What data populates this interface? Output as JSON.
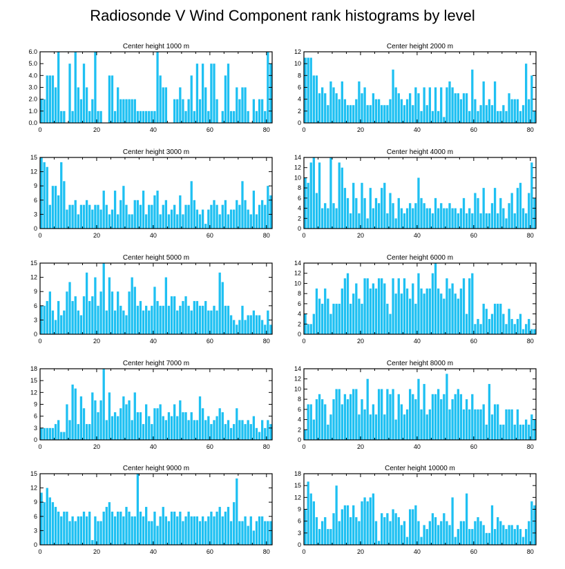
{
  "title": "Radiosonde V Wind Component rank histograms by level",
  "bar_color": "#1ec0f2",
  "chart_data": [
    {
      "type": "bar",
      "title": "Center height 1000 m",
      "xlim": [
        0,
        82
      ],
      "xticks": [
        0,
        20,
        40,
        60,
        80
      ],
      "ylim": [
        0,
        6
      ],
      "yticks": [
        "0.0",
        "1.0",
        "2.0",
        "3.0",
        "4.0",
        "5.0",
        "6.0"
      ],
      "values": [
        2,
        2,
        4,
        4,
        4,
        3,
        6,
        1,
        1,
        0,
        5,
        1,
        6,
        3,
        2,
        5,
        3,
        1,
        2,
        6,
        1,
        1,
        0,
        0,
        4,
        4,
        1,
        3,
        2,
        2,
        2,
        2,
        2,
        2,
        1,
        1,
        1,
        1,
        1,
        1,
        1,
        6,
        4,
        3,
        3,
        0,
        0,
        2,
        2,
        3,
        2,
        1,
        2,
        4,
        1,
        5,
        2,
        5,
        3,
        1,
        5,
        5,
        2,
        0,
        1,
        4,
        5,
        1,
        1,
        3,
        2,
        3,
        3,
        1,
        0,
        2,
        1,
        2,
        2,
        1,
        6,
        5
      ]
    },
    {
      "type": "bar",
      "title": "Center height 2000 m",
      "xlim": [
        0,
        82
      ],
      "xticks": [
        0,
        20,
        40,
        60,
        80
      ],
      "ylim": [
        0,
        12
      ],
      "yticks": [
        "0",
        "2",
        "4",
        "6",
        "8",
        "10",
        "12"
      ],
      "values": [
        11,
        11,
        11,
        8,
        8,
        5,
        6,
        5,
        3,
        7,
        6,
        5,
        4,
        7,
        4,
        3,
        3,
        3,
        4,
        7,
        5,
        6,
        3,
        3,
        5,
        4,
        4,
        3,
        3,
        3,
        4,
        9,
        6,
        5,
        4,
        3,
        4,
        5,
        3,
        6,
        5,
        2,
        6,
        3,
        6,
        2,
        6,
        2,
        6,
        1,
        6,
        7,
        6,
        5,
        5,
        4,
        5,
        5,
        2,
        9,
        4,
        2,
        3,
        7,
        3,
        4,
        3,
        7,
        2,
        2,
        3,
        2,
        5,
        4,
        4,
        4,
        2,
        3,
        10,
        4,
        8,
        2
      ]
    },
    {
      "type": "bar",
      "title": "Center height 3000 m",
      "xlim": [
        0,
        82
      ],
      "xticks": [
        0,
        20,
        40,
        60,
        80
      ],
      "ylim": [
        0,
        15
      ],
      "yticks": [
        "0",
        "3",
        "6",
        "9",
        "12",
        "15"
      ],
      "values": [
        15,
        14,
        13,
        5,
        9,
        9,
        7,
        14,
        10,
        4,
        5,
        5,
        6,
        3,
        5,
        5,
        6,
        5,
        4,
        5,
        5,
        4,
        8,
        5,
        3,
        4,
        8,
        3,
        6,
        9,
        5,
        3,
        3,
        6,
        6,
        5,
        8,
        3,
        5,
        5,
        7,
        8,
        3,
        5,
        6,
        3,
        4,
        5,
        3,
        7,
        3,
        5,
        5,
        10,
        6,
        4,
        3,
        4,
        1,
        4,
        5,
        6,
        5,
        3,
        5,
        6,
        3,
        4,
        4,
        6,
        5,
        10,
        6,
        4,
        3,
        8,
        3,
        5,
        6,
        5,
        9,
        7
      ]
    },
    {
      "type": "bar",
      "title": "Center height 4000 m",
      "xlim": [
        0,
        82
      ],
      "xticks": [
        0,
        20,
        40,
        60,
        80
      ],
      "ylim": [
        0,
        14
      ],
      "yticks": [
        "0",
        "2",
        "4",
        "6",
        "8",
        "10",
        "12",
        "14"
      ],
      "values": [
        10,
        9,
        13,
        14,
        7,
        13,
        4,
        5,
        4,
        14,
        5,
        4,
        13,
        12,
        8,
        6,
        3,
        9,
        6,
        3,
        9,
        6,
        2,
        8,
        4,
        6,
        5,
        8,
        9,
        3,
        7,
        5,
        2,
        6,
        4,
        3,
        4,
        5,
        4,
        5,
        10,
        6,
        5,
        4,
        4,
        3,
        6,
        4,
        5,
        4,
        4,
        5,
        4,
        4,
        3,
        4,
        6,
        3,
        4,
        3,
        7,
        6,
        3,
        8,
        3,
        3,
        5,
        8,
        3,
        6,
        4,
        2,
        5,
        7,
        3,
        8,
        9,
        4,
        3,
        7,
        13,
        6
      ]
    },
    {
      "type": "bar",
      "title": "Center height 5000 m",
      "xlim": [
        0,
        82
      ],
      "xticks": [
        0,
        20,
        40,
        60,
        80
      ],
      "ylim": [
        0,
        15
      ],
      "yticks": [
        "0",
        "3",
        "6",
        "9",
        "12",
        "15"
      ],
      "values": [
        6,
        6,
        7,
        9,
        5,
        3,
        7,
        4,
        5,
        9,
        11,
        7,
        8,
        5,
        4,
        8,
        13,
        7,
        8,
        12,
        6,
        9,
        15,
        5,
        12,
        9,
        5,
        9,
        6,
        5,
        4,
        9,
        12,
        10,
        6,
        7,
        5,
        6,
        5,
        6,
        10,
        7,
        6,
        6,
        12,
        6,
        8,
        8,
        5,
        6,
        7,
        8,
        6,
        5,
        7,
        7,
        6,
        6,
        7,
        5,
        5,
        6,
        5,
        13,
        11,
        6,
        6,
        4,
        3,
        2,
        3,
        6,
        3,
        4,
        4,
        5,
        4,
        4,
        3,
        2,
        5,
        2
      ]
    },
    {
      "type": "bar",
      "title": "Center height 6000 m",
      "xlim": [
        0,
        82
      ],
      "xticks": [
        0,
        20,
        40,
        60,
        80
      ],
      "ylim": [
        0,
        14
      ],
      "yticks": [
        "0",
        "2",
        "4",
        "6",
        "8",
        "10",
        "12",
        "14"
      ],
      "values": [
        4,
        2,
        2,
        4,
        9,
        7,
        6,
        9,
        7,
        4,
        6,
        6,
        6,
        9,
        11,
        12,
        6,
        8,
        10,
        7,
        6,
        11,
        11,
        9,
        10,
        9,
        11,
        11,
        10,
        6,
        4,
        11,
        8,
        11,
        8,
        11,
        9,
        7,
        10,
        6,
        12,
        9,
        8,
        9,
        9,
        12,
        14,
        9,
        8,
        7,
        11,
        9,
        10,
        8,
        7,
        9,
        11,
        4,
        11,
        12,
        2,
        3,
        2,
        6,
        5,
        3,
        4,
        6,
        6,
        6,
        4,
        2,
        5,
        3,
        2,
        3,
        4,
        1,
        2,
        3,
        1,
        1
      ]
    },
    {
      "type": "bar",
      "title": "Center height 7000 m",
      "xlim": [
        0,
        82
      ],
      "xticks": [
        0,
        20,
        40,
        60,
        80
      ],
      "ylim": [
        0,
        18
      ],
      "yticks": [
        "0",
        "3",
        "6",
        "9",
        "12",
        "15",
        "18"
      ],
      "values": [
        3,
        3,
        3,
        3,
        3,
        4,
        5,
        2,
        2,
        9,
        5,
        14,
        13,
        4,
        11,
        8,
        4,
        4,
        12,
        10,
        7,
        10,
        18,
        5,
        12,
        6,
        7,
        6,
        8,
        11,
        9,
        10,
        5,
        12,
        7,
        7,
        4,
        9,
        6,
        4,
        8,
        8,
        9,
        6,
        5,
        7,
        6,
        9,
        6,
        10,
        7,
        7,
        5,
        7,
        5,
        5,
        11,
        8,
        5,
        6,
        4,
        5,
        6,
        8,
        7,
        4,
        5,
        3,
        4,
        8,
        5,
        5,
        4,
        5,
        4,
        6,
        3,
        2,
        5,
        3,
        5,
        4
      ]
    },
    {
      "type": "bar",
      "title": "Center height 8000 m",
      "xlim": [
        0,
        82
      ],
      "xticks": [
        0,
        20,
        40,
        60,
        80
      ],
      "ylim": [
        0,
        14
      ],
      "yticks": [
        "0",
        "2",
        "4",
        "6",
        "8",
        "10",
        "12",
        "14"
      ],
      "values": [
        2,
        7,
        7,
        4,
        8,
        9,
        8,
        7,
        3,
        5,
        8,
        10,
        10,
        7,
        9,
        8,
        9,
        10,
        10,
        5,
        8,
        6,
        12,
        5,
        7,
        5,
        10,
        10,
        5,
        10,
        9,
        10,
        4,
        9,
        7,
        5,
        6,
        10,
        9,
        8,
        12,
        6,
        11,
        5,
        6,
        9,
        9,
        10,
        8,
        9,
        13,
        6,
        8,
        9,
        10,
        9,
        6,
        8,
        6,
        9,
        6,
        6,
        6,
        7,
        3,
        11,
        5,
        7,
        7,
        3,
        3,
        6,
        6,
        6,
        3,
        6,
        3,
        3,
        4,
        3,
        5,
        4
      ]
    },
    {
      "type": "bar",
      "title": "Center height 9000 m",
      "xlim": [
        0,
        82
      ],
      "xticks": [
        0,
        20,
        40,
        60,
        80
      ],
      "ylim": [
        0,
        15
      ],
      "yticks": [
        "0",
        "3",
        "6",
        "9",
        "12",
        "15"
      ],
      "values": [
        11,
        9,
        12,
        10,
        9,
        8,
        7,
        6,
        7,
        7,
        5,
        6,
        5,
        6,
        6,
        7,
        6,
        7,
        1,
        6,
        5,
        5,
        7,
        8,
        9,
        7,
        6,
        7,
        7,
        6,
        8,
        7,
        6,
        6,
        15,
        7,
        6,
        8,
        5,
        5,
        7,
        4,
        6,
        8,
        6,
        5,
        7,
        7,
        6,
        7,
        5,
        6,
        7,
        6,
        6,
        6,
        5,
        6,
        5,
        6,
        7,
        6,
        7,
        8,
        6,
        7,
        8,
        5,
        9,
        14,
        5,
        5,
        6,
        4,
        6,
        3,
        5,
        6,
        6,
        5,
        5,
        5
      ]
    },
    {
      "type": "bar",
      "title": "Center height 10000 m",
      "xlim": [
        0,
        82
      ],
      "xticks": [
        0,
        20,
        40,
        60,
        80
      ],
      "ylim": [
        0,
        18
      ],
      "yticks": [
        "0",
        "3",
        "6",
        "9",
        "12",
        "15",
        "18"
      ],
      "values": [
        9,
        16,
        13,
        11,
        7,
        4,
        6,
        7,
        4,
        4,
        8,
        15,
        6,
        9,
        10,
        10,
        7,
        10,
        7,
        6,
        11,
        12,
        11,
        12,
        13,
        6,
        1,
        8,
        7,
        8,
        6,
        9,
        8,
        7,
        5,
        6,
        2,
        9,
        9,
        10,
        6,
        2,
        5,
        4,
        6,
        8,
        7,
        5,
        6,
        8,
        6,
        5,
        12,
        2,
        4,
        6,
        6,
        13,
        4,
        4,
        6,
        7,
        6,
        5,
        3,
        3,
        10,
        4,
        7,
        6,
        5,
        4,
        5,
        5,
        4,
        5,
        4,
        2,
        4,
        6,
        11,
        10
      ]
    }
  ]
}
